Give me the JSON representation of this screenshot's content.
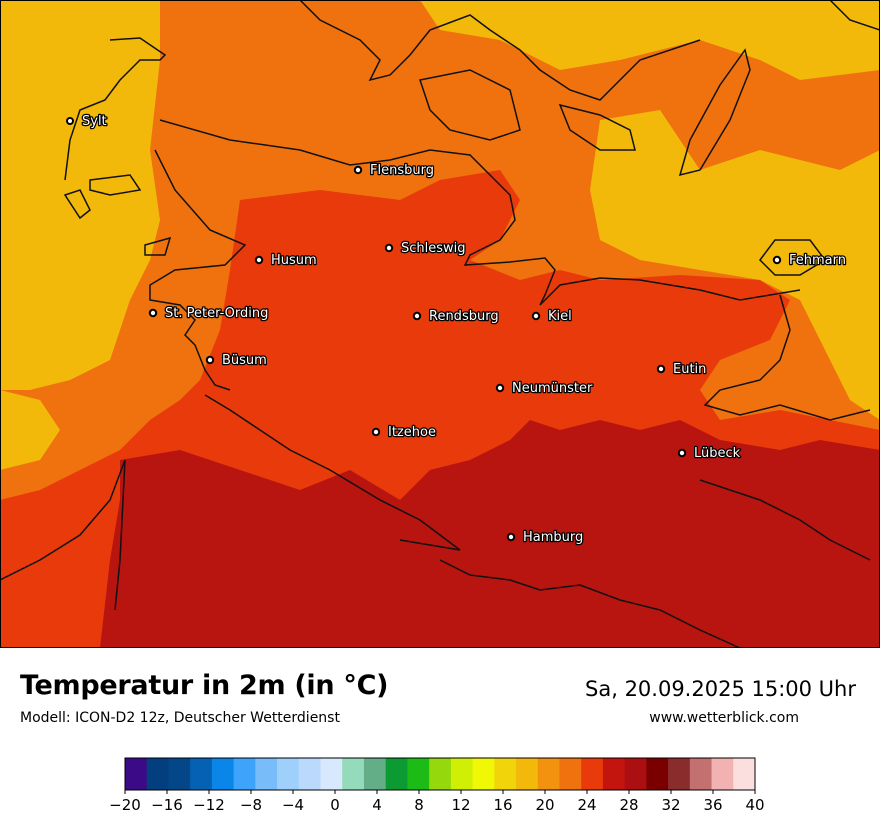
{
  "title": "Temperatur in 2m (in °C)",
  "model": "Modell: ICON-D2 12z, Deutscher Wetterdienst",
  "datetime": "Sa, 20.09.2025 15:00 Uhr",
  "website": "www.wetterblick.com",
  "cities": [
    {
      "name": "Sylt"
    },
    {
      "name": "Flensburg"
    },
    {
      "name": "Schleswig"
    },
    {
      "name": "Husum"
    },
    {
      "name": "St. Peter-Ording"
    },
    {
      "name": "Büsum"
    },
    {
      "name": "Rendsburg"
    },
    {
      "name": "Kiel"
    },
    {
      "name": "Fehmarn"
    },
    {
      "name": "Eutin"
    },
    {
      "name": "Neumünster"
    },
    {
      "name": "Itzehoe"
    },
    {
      "name": "Lübeck"
    },
    {
      "name": "Hamburg"
    }
  ],
  "legend": {
    "colors": [
      "#3b0a87",
      "#033e7e",
      "#044789",
      "#0561b4",
      "#0a85e8",
      "#3ea3fa",
      "#79bcfa",
      "#9ed0fb",
      "#bad9fc",
      "#d8e9fd",
      "#93dbbb",
      "#63ae87",
      "#0b9b32",
      "#1dbb15",
      "#95d80b",
      "#cfef05",
      "#f1f805",
      "#f1d50a",
      "#f2b90a",
      "#f2920e",
      "#f0720e",
      "#e83a0a",
      "#c4140e",
      "#ac0f12",
      "#7a0000",
      "#8b2c2c",
      "#c27070",
      "#f2b2b2",
      "#fbdfdf"
    ],
    "tick_labels": [
      "−20",
      "−16",
      "−12",
      "−8",
      "−4",
      "0",
      "4",
      "8",
      "12",
      "16",
      "20",
      "24",
      "28",
      "32",
      "36",
      "40"
    ]
  },
  "temperature_colors": {
    "t20_22": "#f2b90a",
    "t22_24": "#f0720e",
    "t24_26": "#e83a0a",
    "t26_28": "#b81410"
  }
}
